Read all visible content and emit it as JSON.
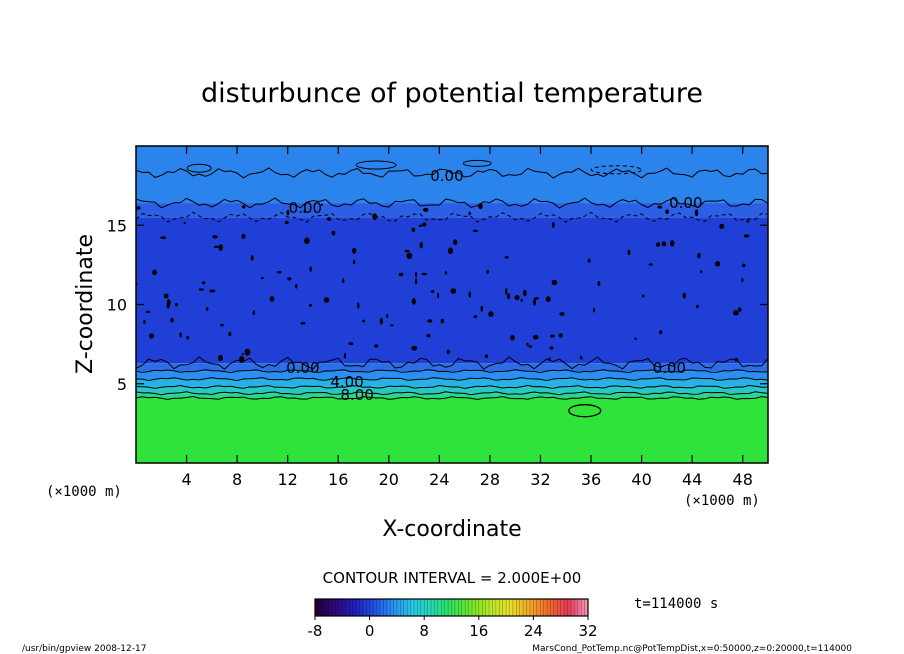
{
  "chart_data": {
    "type": "heatmap",
    "title": "disturbunce of potential temperature",
    "xlabel": "X-coordinate",
    "ylabel": "Z-coordinate",
    "x_unit_left": "(×1000 m)",
    "x_unit_right": "(×1000 m)",
    "xlim": [
      0,
      50
    ],
    "ylim": [
      0,
      20
    ],
    "x_ticks": [
      4,
      8,
      12,
      16,
      20,
      24,
      28,
      32,
      36,
      40,
      44,
      48
    ],
    "y_ticks": [
      5,
      10,
      15
    ],
    "contour_interval_text": "CONTOUR INTERVAL = 2.000E+00",
    "time_text": "t=114000 s",
    "colorbar": {
      "min": -8,
      "max": 32,
      "ticks": [
        -8,
        0,
        8,
        16,
        24,
        32
      ]
    },
    "contour_labels": [
      {
        "text": "0.00",
        "x": 24.6,
        "z": 18.1
      },
      {
        "text": "0.00",
        "x": 43.5,
        "z": 16.4
      },
      {
        "text": "0.00",
        "x": 13.4,
        "z": 16.1
      },
      {
        "text": "0.00",
        "x": 13.2,
        "z": 6.0
      },
      {
        "text": "0.00",
        "x": 42.2,
        "z": 6.0
      },
      {
        "text": "4.00",
        "x": 16.7,
        "z": 5.1
      },
      {
        "text": "8.00",
        "x": 17.5,
        "z": 4.3
      }
    ],
    "layers": [
      {
        "z_bottom": 0,
        "z_top": 4.1,
        "color": "#2fe33a",
        "value": 10
      },
      {
        "z_bottom": 4.1,
        "z_top": 4.4,
        "color": "#2ad58c",
        "value": 8
      },
      {
        "z_bottom": 4.4,
        "z_top": 4.8,
        "color": "#27c8c4",
        "value": 6
      },
      {
        "z_bottom": 4.8,
        "z_top": 5.3,
        "color": "#27b2e6",
        "value": 4
      },
      {
        "z_bottom": 5.3,
        "z_top": 5.8,
        "color": "#2a8ff0",
        "value": 2
      },
      {
        "z_bottom": 5.8,
        "z_top": 6.3,
        "color": "#2a6fe8",
        "value": 0
      },
      {
        "z_bottom": 6.3,
        "z_top": 15.5,
        "color": "#1f3fd6",
        "value": -2
      },
      {
        "z_bottom": 15.5,
        "z_top": 16.4,
        "color": "#2a5fe6",
        "value": -1
      },
      {
        "z_bottom": 16.4,
        "z_top": 20,
        "color": "#2b84ec",
        "value": 0
      }
    ],
    "colorbar_colors": [
      "#200030",
      "#2a0a7a",
      "#1f1fb8",
      "#1f50e0",
      "#2a8ff0",
      "#27c8e8",
      "#27d9b0",
      "#2fe35a",
      "#6fe82a",
      "#b8e82a",
      "#e8e02a",
      "#f0a82a",
      "#f06a2a",
      "#e83a5a",
      "#f09ab8"
    ]
  },
  "footer": {
    "left": "/usr/bin/gpview   2008-12-17",
    "right": "MarsCond_PotTemp.nc@PotTempDist,x=0:50000,z=0:20000,t=114000"
  }
}
